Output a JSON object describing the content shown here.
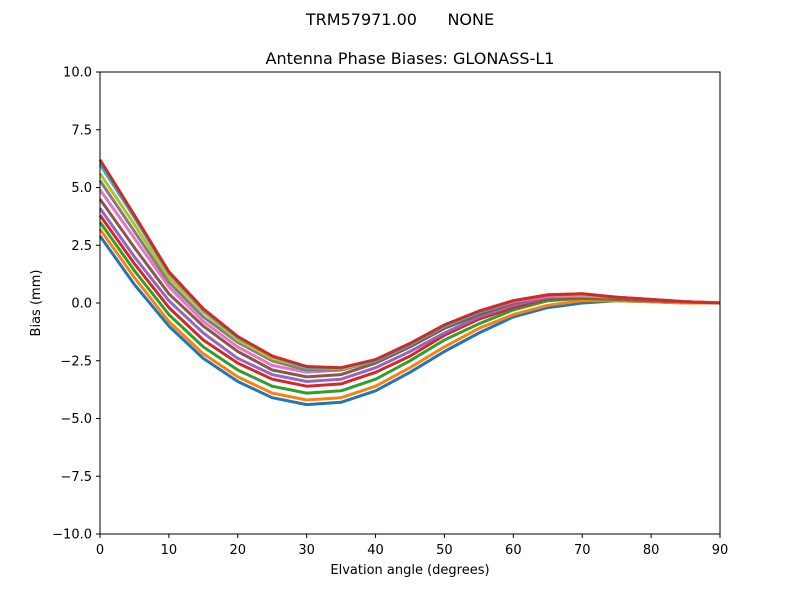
{
  "figure": {
    "suptitle": "TRM57971.00      NONE"
  },
  "chart_data": {
    "type": "line",
    "title": "Antenna Phase Biases: GLONASS-L1",
    "xlabel": "Elvation angle (degrees)",
    "ylabel": "Bias (mm)",
    "xlim": [
      0,
      90
    ],
    "ylim": [
      -10,
      10
    ],
    "xticks": [
      0,
      10,
      20,
      30,
      40,
      50,
      60,
      70,
      80,
      90
    ],
    "yticks": [
      -10.0,
      -7.5,
      -5.0,
      -2.5,
      0.0,
      2.5,
      5.0,
      7.5,
      10.0
    ],
    "xtick_labels": [
      "0",
      "10",
      "20",
      "30",
      "40",
      "50",
      "60",
      "70",
      "80",
      "90"
    ],
    "ytick_labels": [
      "−10.0",
      "−7.5",
      "−5.0",
      "−2.5",
      "0.0",
      "2.5",
      "5.0",
      "7.5",
      "10.0"
    ],
    "grid": false,
    "legend": "none",
    "x": [
      0,
      5,
      10,
      15,
      20,
      25,
      30,
      35,
      40,
      45,
      50,
      55,
      60,
      65,
      70,
      75,
      80,
      85,
      90
    ],
    "series": [
      {
        "color": "#1f77b4",
        "values": [
          2.9,
          0.8,
          -1.0,
          -2.4,
          -3.4,
          -4.1,
          -4.4,
          -4.3,
          -3.8,
          -3.0,
          -2.1,
          -1.3,
          -0.6,
          -0.2,
          0.0,
          0.1,
          0.05,
          0.0,
          0.0
        ]
      },
      {
        "color": "#ff7f0e",
        "values": [
          3.2,
          1.1,
          -0.8,
          -2.2,
          -3.2,
          -3.9,
          -4.2,
          -4.1,
          -3.6,
          -2.8,
          -1.9,
          -1.1,
          -0.5,
          -0.1,
          0.1,
          0.1,
          0.05,
          0.0,
          0.0
        ]
      },
      {
        "color": "#2ca02c",
        "values": [
          3.5,
          1.4,
          -0.5,
          -1.9,
          -2.9,
          -3.6,
          -3.9,
          -3.8,
          -3.3,
          -2.5,
          -1.6,
          -0.9,
          -0.3,
          0.1,
          0.2,
          0.15,
          0.1,
          0.05,
          0.0
        ]
      },
      {
        "color": "#d62728",
        "values": [
          3.8,
          1.7,
          -0.2,
          -1.6,
          -2.6,
          -3.3,
          -3.6,
          -3.5,
          -3.0,
          -2.3,
          -1.4,
          -0.7,
          -0.2,
          0.2,
          0.25,
          0.2,
          0.1,
          0.05,
          0.0
        ]
      },
      {
        "color": "#9467bd",
        "values": [
          4.1,
          2.0,
          0.1,
          -1.3,
          -2.4,
          -3.1,
          -3.4,
          -3.3,
          -2.8,
          -2.1,
          -1.3,
          -0.6,
          -0.1,
          0.25,
          0.3,
          0.2,
          0.1,
          0.05,
          0.0
        ]
      },
      {
        "color": "#8c564b",
        "values": [
          4.5,
          2.4,
          0.4,
          -1.0,
          -2.1,
          -2.9,
          -3.2,
          -3.1,
          -2.6,
          -1.9,
          -1.1,
          -0.5,
          0.0,
          0.3,
          0.3,
          0.2,
          0.1,
          0.05,
          0.0
        ]
      },
      {
        "color": "#e377c2",
        "values": [
          4.9,
          2.8,
          0.7,
          -0.8,
          -1.9,
          -2.7,
          -3.0,
          -2.9,
          -2.5,
          -1.8,
          -1.0,
          -0.4,
          0.05,
          0.3,
          0.3,
          0.25,
          0.15,
          0.05,
          0.0
        ]
      },
      {
        "color": "#7f7f7f",
        "values": [
          5.3,
          3.1,
          0.9,
          -0.6,
          -1.7,
          -2.5,
          -2.9,
          -2.9,
          -2.5,
          -1.8,
          -1.0,
          -0.4,
          0.1,
          0.35,
          0.35,
          0.25,
          0.15,
          0.05,
          0.0
        ]
      },
      {
        "color": "#bcbd22",
        "values": [
          5.6,
          3.4,
          1.1,
          -0.4,
          -1.6,
          -2.4,
          -2.8,
          -2.85,
          -2.5,
          -1.8,
          -1.0,
          -0.4,
          0.1,
          0.35,
          0.35,
          0.25,
          0.15,
          0.05,
          0.0
        ]
      },
      {
        "color": "#17becf",
        "values": [
          6.0,
          3.7,
          1.3,
          -0.3,
          -1.5,
          -2.3,
          -2.8,
          -2.8,
          -2.5,
          -1.8,
          -1.0,
          -0.4,
          0.1,
          0.35,
          0.4,
          0.25,
          0.15,
          0.05,
          0.0
        ]
      },
      {
        "color": "#d62728",
        "values": [
          6.2,
          3.8,
          1.35,
          -0.25,
          -1.45,
          -2.3,
          -2.75,
          -2.8,
          -2.45,
          -1.75,
          -0.95,
          -0.35,
          0.1,
          0.35,
          0.4,
          0.25,
          0.15,
          0.05,
          0.0
        ]
      }
    ]
  }
}
